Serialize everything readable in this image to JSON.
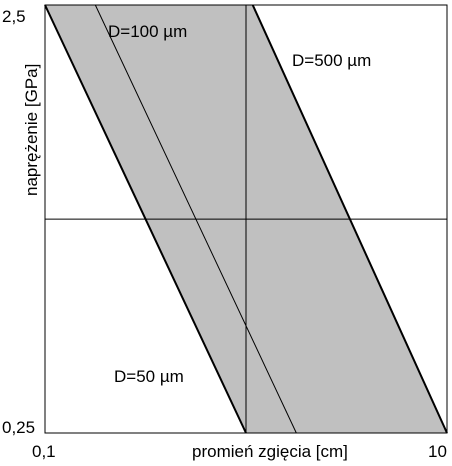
{
  "chart_data": {
    "type": "area",
    "title": "",
    "xlabel": "promień zgięcia [cm]",
    "ylabel": "naprężenie [GPa]",
    "x_scale": "log",
    "y_scale": "log",
    "xlim": [
      0.1,
      10
    ],
    "ylim": [
      0.25,
      2.5
    ],
    "x_ticks": [
      "0,1",
      "10"
    ],
    "y_ticks": [
      "2,5",
      "0,25"
    ],
    "grid": {
      "x": [
        1
      ],
      "y": [
        0.79
      ]
    },
    "colors": {
      "band": "#c0c0c0",
      "line": "#000000",
      "frame": "#000000"
    },
    "band": {
      "lower": "D=50 µm",
      "upper": "D=500 µm"
    },
    "series": [
      {
        "name": "D=50 µm",
        "x": [
          0.1,
          1.0
        ],
        "y": [
          2.5,
          0.25
        ]
      },
      {
        "name": "D=100 µm",
        "x": [
          0.178,
          1.78
        ],
        "y": [
          2.5,
          0.25
        ]
      },
      {
        "name": "D=500 µm",
        "x": [
          1.08,
          10.0
        ],
        "y": [
          2.5,
          0.25
        ]
      }
    ],
    "annotations": [
      {
        "text": "D=100  µm",
        "series": "D=100 µm"
      },
      {
        "text": "D=500  µm",
        "series": "D=500 µm"
      },
      {
        "text": "D=50  µm",
        "series": "D=50 µm"
      }
    ]
  }
}
